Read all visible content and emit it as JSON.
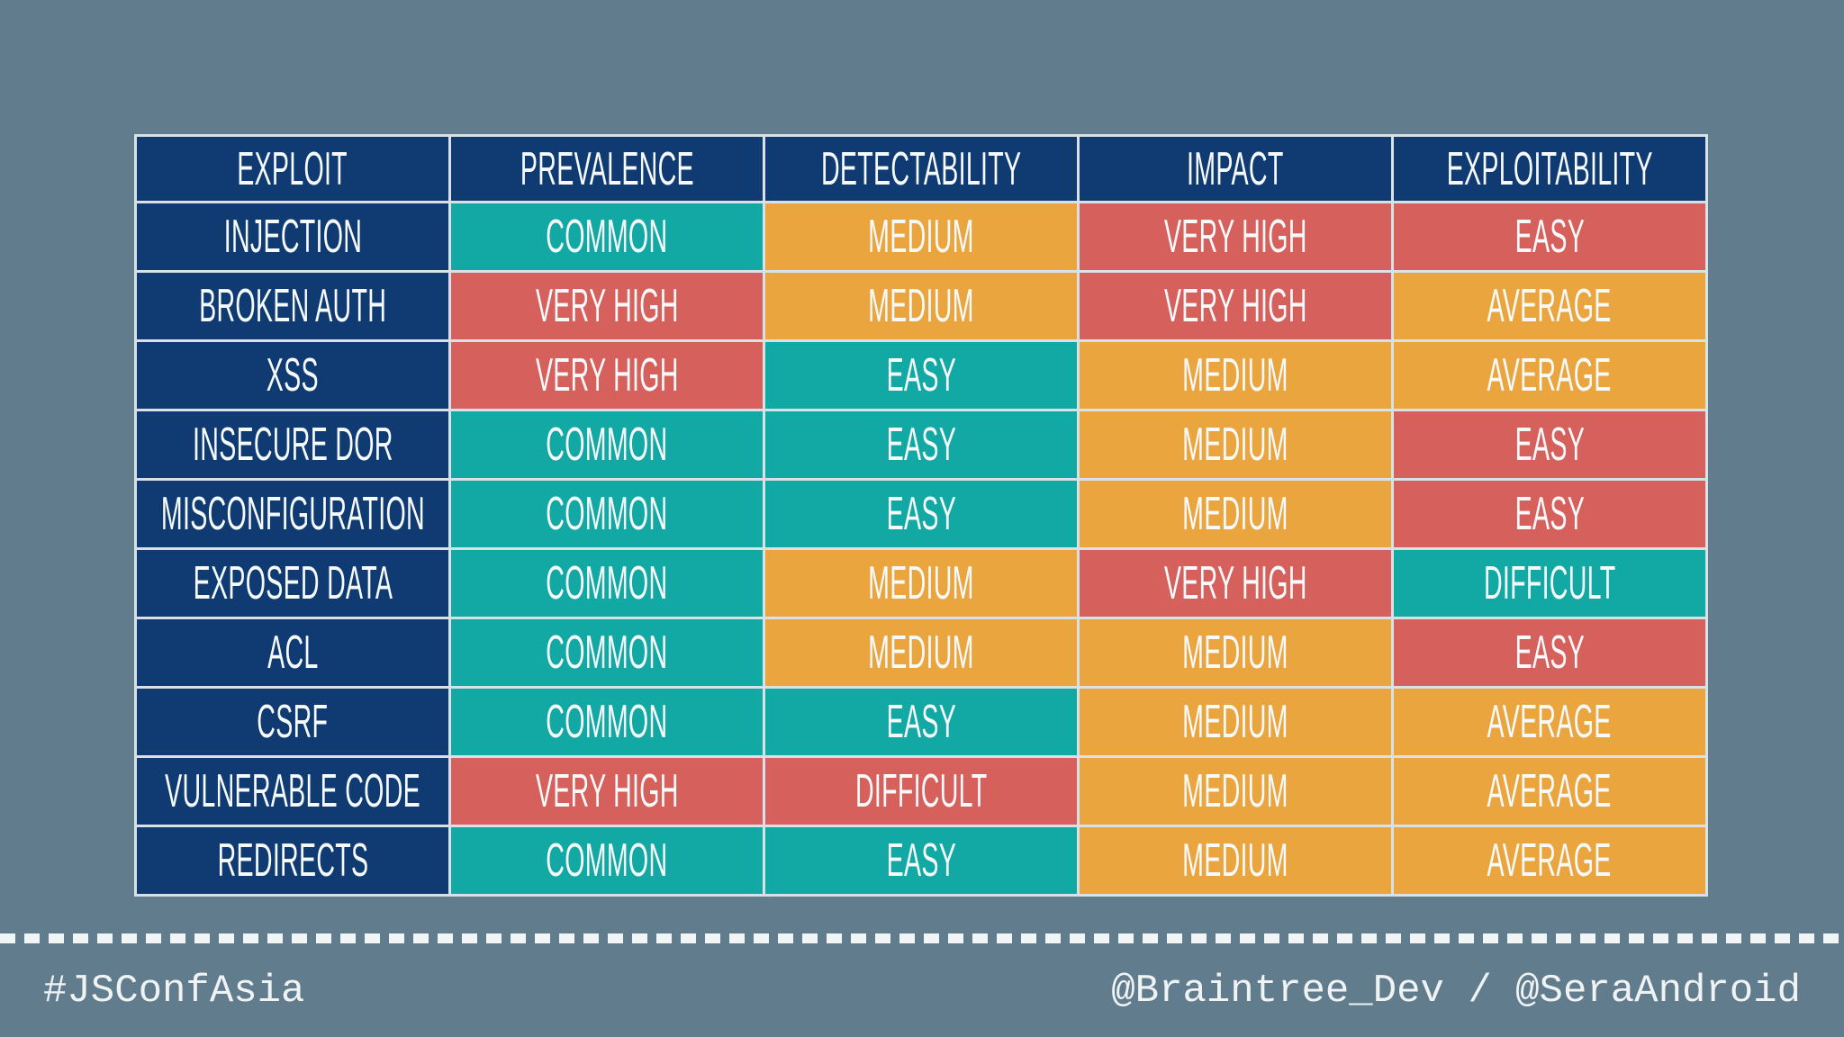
{
  "page": {
    "css_colors": {
      "bg": "#617C8D",
      "navy": "#0F3B72",
      "teal": "#12A8A4",
      "orange": "#EAA53E",
      "red": "#D6605C",
      "grid": "#D8E1E6",
      "text": "#F7FAFB",
      "footer-text": "#EFF3F4"
    }
  },
  "chart_data": {
    "type": "table",
    "title": "",
    "columns": [
      "EXPLOIT",
      "PREVALENCE",
      "DETECTABILITY",
      "IMPACT",
      "EXPLOITABILITY"
    ],
    "palette_note": "cell color keys resolve via page.css_colors",
    "rows": [
      {
        "exploit": "INJECTION",
        "cells": [
          {
            "text": "COMMON",
            "color": "teal"
          },
          {
            "text": "MEDIUM",
            "color": "orange"
          },
          {
            "text": "VERY HIGH",
            "color": "red"
          },
          {
            "text": "EASY",
            "color": "red"
          }
        ]
      },
      {
        "exploit": "BROKEN AUTH",
        "cells": [
          {
            "text": "VERY HIGH",
            "color": "red"
          },
          {
            "text": "MEDIUM",
            "color": "orange"
          },
          {
            "text": "VERY HIGH",
            "color": "red"
          },
          {
            "text": "AVERAGE",
            "color": "orange"
          }
        ]
      },
      {
        "exploit": "XSS",
        "cells": [
          {
            "text": "VERY HIGH",
            "color": "red"
          },
          {
            "text": "EASY",
            "color": "teal"
          },
          {
            "text": "MEDIUM",
            "color": "orange"
          },
          {
            "text": "AVERAGE",
            "color": "orange"
          }
        ]
      },
      {
        "exploit": "INSECURE DOR",
        "cells": [
          {
            "text": "COMMON",
            "color": "teal"
          },
          {
            "text": "EASY",
            "color": "teal"
          },
          {
            "text": "MEDIUM",
            "color": "orange"
          },
          {
            "text": "EASY",
            "color": "red"
          }
        ]
      },
      {
        "exploit": "MISCONFIGURATION",
        "cells": [
          {
            "text": "COMMON",
            "color": "teal"
          },
          {
            "text": "EASY",
            "color": "teal"
          },
          {
            "text": "MEDIUM",
            "color": "orange"
          },
          {
            "text": "EASY",
            "color": "red"
          }
        ]
      },
      {
        "exploit": "EXPOSED DATA",
        "cells": [
          {
            "text": "COMMON",
            "color": "teal"
          },
          {
            "text": "MEDIUM",
            "color": "orange"
          },
          {
            "text": "VERY HIGH",
            "color": "red"
          },
          {
            "text": "DIFFICULT",
            "color": "teal"
          }
        ]
      },
      {
        "exploit": "ACL",
        "cells": [
          {
            "text": "COMMON",
            "color": "teal"
          },
          {
            "text": "MEDIUM",
            "color": "orange"
          },
          {
            "text": "MEDIUM",
            "color": "orange"
          },
          {
            "text": "EASY",
            "color": "red"
          }
        ]
      },
      {
        "exploit": "CSRF",
        "cells": [
          {
            "text": "COMMON",
            "color": "teal"
          },
          {
            "text": "EASY",
            "color": "teal"
          },
          {
            "text": "MEDIUM",
            "color": "orange"
          },
          {
            "text": "AVERAGE",
            "color": "orange"
          }
        ]
      },
      {
        "exploit": "VULNERABLE CODE",
        "cells": [
          {
            "text": "VERY HIGH",
            "color": "red"
          },
          {
            "text": "DIFFICULT",
            "color": "red"
          },
          {
            "text": "MEDIUM",
            "color": "orange"
          },
          {
            "text": "AVERAGE",
            "color": "orange"
          }
        ]
      },
      {
        "exploit": "REDIRECTS",
        "cells": [
          {
            "text": "COMMON",
            "color": "teal"
          },
          {
            "text": "EASY",
            "color": "teal"
          },
          {
            "text": "MEDIUM",
            "color": "orange"
          },
          {
            "text": "AVERAGE",
            "color": "orange"
          }
        ]
      }
    ]
  },
  "footer": {
    "hashtag": "#JSConfAsia",
    "credits": "@Braintree_Dev / @SeraAndroid"
  }
}
